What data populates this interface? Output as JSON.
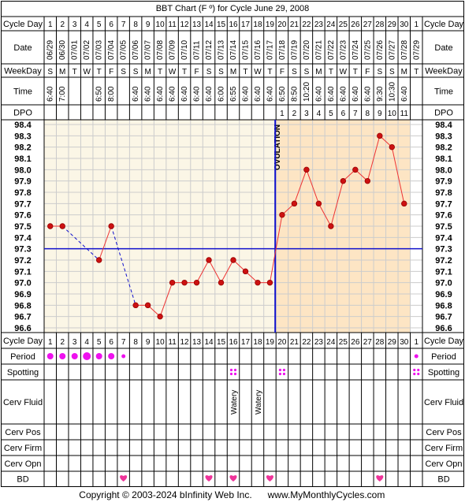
{
  "title": "BBT Chart (F º) for Cycle June 29, 2008",
  "row_labels": {
    "cycle_day": "Cycle Day",
    "date": "Date",
    "weekday": "WeekDay",
    "time": "Time",
    "dpo": "DPO",
    "period": "Period",
    "spotting": "Spotting",
    "cerv_fluid": "Cerv Fluid",
    "cerv_pos": "Cerv Pos",
    "cerv_firm": "Cerv Firm",
    "cerv_opn": "Cerv Opn",
    "bd": "BD"
  },
  "ovulation_label": "OVULATION",
  "footer": {
    "copyright": "Copyright © 2003-2024 bInfinity Web Inc.",
    "site": "www.MyMonthlyCycles.com"
  },
  "colors": {
    "pre_ovulation_bg": "#fbf6e6",
    "post_ovulation_bg": "#fde5c4",
    "line": "#ee3333",
    "marker": "#cc1111",
    "ovulation_line": "#1111cc",
    "coverline": "#1111cc",
    "period": "#ee11ee",
    "heart": "#ee3399"
  },
  "chart_data": {
    "type": "line",
    "title": "BBT Chart (F º) for Cycle June 29, 2008",
    "cycle_days": [
      "1",
      "2",
      "3",
      "4",
      "5",
      "6",
      "7",
      "8",
      "9",
      "10",
      "11",
      "12",
      "13",
      "14",
      "15",
      "16",
      "17",
      "18",
      "19",
      "20",
      "21",
      "22",
      "23",
      "24",
      "25",
      "26",
      "27",
      "28",
      "29",
      "30",
      "1"
    ],
    "dates": [
      "06/29",
      "06/30",
      "07/01",
      "07/02",
      "07/03",
      "07/04",
      "07/05",
      "07/06",
      "07/07",
      "07/08",
      "07/09",
      "07/10",
      "07/11",
      "07/12",
      "07/13",
      "07/14",
      "07/15",
      "07/16",
      "07/17",
      "07/18",
      "07/19",
      "07/20",
      "07/21",
      "07/22",
      "07/23",
      "07/24",
      "07/25",
      "07/26",
      "07/27",
      "07/28",
      "07/29"
    ],
    "weekdays": [
      "S",
      "M",
      "T",
      "W",
      "T",
      "F",
      "S",
      "S",
      "M",
      "T",
      "W",
      "T",
      "F",
      "S",
      "S",
      "M",
      "T",
      "W",
      "T",
      "F",
      "S",
      "S",
      "M",
      "T",
      "W",
      "T",
      "F",
      "S",
      "S",
      "M",
      "T"
    ],
    "times": [
      "6:40",
      "7:00",
      "",
      "",
      "6:50",
      "8:00",
      "",
      "6:40",
      "6:40",
      "6:40",
      "6:40",
      "6:40",
      "6:40",
      "6:40",
      "6:00",
      "6:55",
      "6:40",
      "6:40",
      "6:40",
      "6:50",
      "8:50",
      "10:20",
      "6:40",
      "6:40",
      "6:40",
      "6:40",
      "6:40",
      "9:30",
      "10:30",
      "6:40",
      ""
    ],
    "dpo": [
      "",
      "",
      "",
      "",
      "",
      "",
      "",
      "",
      "",
      "",
      "",
      "",
      "",
      "",
      "",
      "",
      "",
      "",
      "",
      "1",
      "2",
      "3",
      "4",
      "5",
      "6",
      "7",
      "8",
      "9",
      "10",
      "11",
      ""
    ],
    "temps": [
      97.5,
      97.5,
      null,
      null,
      97.2,
      97.5,
      null,
      96.8,
      96.8,
      96.7,
      97.0,
      97.0,
      97.0,
      97.2,
      97.0,
      97.2,
      97.1,
      97.0,
      97.0,
      97.6,
      97.7,
      98.0,
      97.7,
      97.5,
      97.9,
      98.0,
      97.9,
      98.3,
      98.2,
      97.7,
      null
    ],
    "y_ticks": [
      "98.4",
      "98.3",
      "98.2",
      "98.1",
      "98.0",
      "97.9",
      "97.8",
      "97.7",
      "97.6",
      "97.5",
      "97.4",
      "97.3",
      "97.2",
      "97.1",
      "97.0",
      "96.9",
      "96.8",
      "96.7",
      "96.6"
    ],
    "ylim": [
      96.6,
      98.4
    ],
    "coverline": 97.3,
    "ovulation_day_index": 18,
    "period": [
      "medium",
      "medium",
      "medium",
      "heavy",
      "medium",
      "medium",
      "light",
      "",
      "",
      "",
      "",
      "",
      "",
      "",
      "",
      "",
      "",
      "",
      "",
      "",
      "",
      "",
      "",
      "",
      "",
      "",
      "",
      "",
      "",
      "",
      "light"
    ],
    "spotting": [
      false,
      false,
      false,
      false,
      false,
      false,
      false,
      false,
      false,
      false,
      false,
      false,
      false,
      false,
      false,
      true,
      false,
      false,
      false,
      true,
      false,
      false,
      false,
      false,
      false,
      false,
      false,
      false,
      false,
      false,
      true
    ],
    "cerv_fluid": [
      "",
      "",
      "",
      "",
      "",
      "",
      "",
      "",
      "",
      "",
      "",
      "",
      "",
      "",
      "",
      "Watery",
      "",
      "Watery",
      "",
      "",
      "",
      "",
      "",
      "",
      "",
      "",
      "",
      "",
      "",
      "",
      ""
    ],
    "bd": [
      false,
      false,
      false,
      false,
      false,
      false,
      true,
      false,
      false,
      false,
      false,
      false,
      false,
      true,
      false,
      true,
      false,
      false,
      true,
      false,
      false,
      false,
      false,
      false,
      false,
      false,
      false,
      true,
      false,
      false,
      false
    ]
  }
}
